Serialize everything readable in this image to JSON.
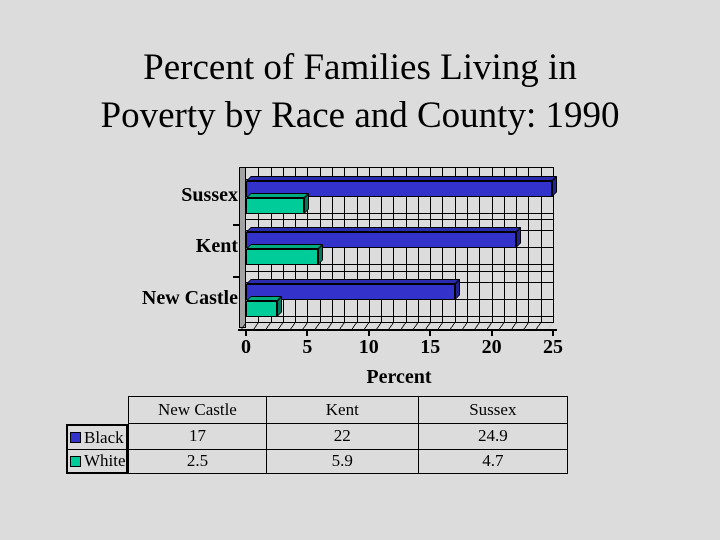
{
  "title": {
    "lines": [
      "Percent of Families Living in",
      "Poverty by Race and County: 1990"
    ]
  },
  "chart_data": {
    "type": "bar",
    "orientation": "horizontal",
    "title": "",
    "xlabel": "Percent",
    "xlim": [
      0,
      25
    ],
    "xticks": [
      0,
      5,
      10,
      15,
      20,
      25
    ],
    "minor_grid_step": 1,
    "grid": "on",
    "style": "3d-extruded",
    "categories": [
      "New Castle",
      "Kent",
      "Sussex"
    ],
    "category_display_order_top_to_bottom": [
      "Sussex",
      "Kent",
      "New Castle"
    ],
    "series": [
      {
        "name": "Black",
        "color": "#3333cc",
        "color_top": "#2b2bb0",
        "color_side": "#222291",
        "values": [
          17,
          22,
          24.9
        ]
      },
      {
        "name": "White",
        "color": "#00cc99",
        "color_top": "#00ab80",
        "color_side": "#007a5c",
        "values": [
          2.5,
          5.9,
          4.7
        ]
      }
    ],
    "legend_position": "left-of-table"
  },
  "colors": {
    "background": "#dcdcdc",
    "wall": "#a3a3a3",
    "gridline": "#000000"
  }
}
